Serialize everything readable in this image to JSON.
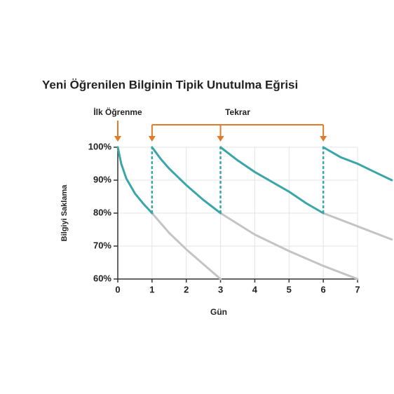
{
  "chart_data": {
    "type": "line",
    "title": "Yeni Öğrenilen Bilginin Tipik Unutulma Eğrisi",
    "xlabel": "Gün",
    "ylabel": "Bilgiyi Saklama",
    "xlim": [
      0,
      7
    ],
    "ylim": [
      60,
      100
    ],
    "xticks": [
      0,
      1,
      2,
      3,
      4,
      5,
      6,
      7
    ],
    "yticks": [
      {
        "value": 60,
        "label": "60%"
      },
      {
        "value": 70,
        "label": "70%"
      },
      {
        "value": 80,
        "label": "80%"
      },
      {
        "value": 90,
        "label": "90%"
      },
      {
        "value": 100,
        "label": "100%"
      }
    ],
    "grid": true,
    "annotation_color": "#e07b28",
    "annotations": {
      "first": {
        "text": "İlk Öğrenme",
        "x": 0
      },
      "review": {
        "text": "Tekrar",
        "x": [
          1,
          3,
          6
        ]
      }
    },
    "series": [
      {
        "color": "#3aa6a8",
        "x": [
          0,
          0.1,
          0.25,
          0.5,
          0.75,
          1
        ],
        "values": [
          100,
          95,
          90.5,
          86,
          82.8,
          80
        ]
      },
      {
        "color": "#3aa6a8",
        "x": [
          1,
          1.25,
          1.5,
          2,
          2.5,
          3
        ],
        "values": [
          100,
          96.5,
          93.5,
          88.5,
          84,
          80
        ]
      },
      {
        "color": "#3aa6a8",
        "x": [
          3,
          3.5,
          4,
          4.5,
          5,
          5.5,
          6
        ],
        "values": [
          100,
          96,
          92.5,
          89.5,
          86.5,
          83,
          80
        ]
      },
      {
        "color": "#3aa6a8",
        "x": [
          6,
          6.5,
          7,
          7.5,
          8
        ],
        "values": [
          100,
          97,
          95,
          92.5,
          90
        ]
      },
      {
        "color": "#c4c4c4",
        "x": [
          1,
          1.5,
          2,
          2.5,
          3
        ],
        "values": [
          80,
          74,
          69,
          64.5,
          60
        ]
      },
      {
        "color": "#c4c4c4",
        "x": [
          3,
          4,
          5,
          6,
          7
        ],
        "values": [
          80,
          73.5,
          68.5,
          64,
          60
        ]
      },
      {
        "color": "#c4c4c4",
        "x": [
          6,
          7,
          8
        ],
        "values": [
          80,
          76,
          72
        ]
      }
    ]
  }
}
